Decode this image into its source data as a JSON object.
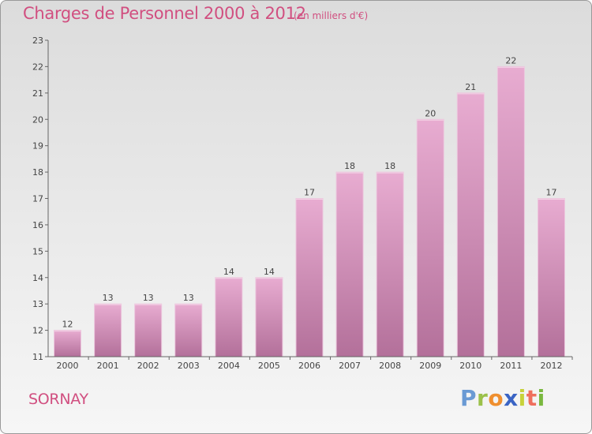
{
  "chart_data": {
    "type": "bar",
    "title": "Charges de Personnel 2000 à 2012",
    "subtitle": "(en milliers d'€)",
    "categories": [
      "2000",
      "2001",
      "2002",
      "2003",
      "2004",
      "2005",
      "2006",
      "2007",
      "2008",
      "2009",
      "2010",
      "2011",
      "2012"
    ],
    "values": [
      12,
      13,
      13,
      13,
      14,
      14,
      17,
      18,
      18,
      20,
      21,
      22,
      17
    ],
    "ylim": [
      11,
      23
    ],
    "yticks": [
      11,
      12,
      13,
      14,
      15,
      16,
      17,
      18,
      19,
      20,
      21,
      22,
      23
    ],
    "grid": false,
    "bar_color": "#d993bd",
    "data_labels": true
  },
  "footer": {
    "city": "SORNAY",
    "logo": {
      "p": "P",
      "r": "r",
      "o": "o",
      "x": "x",
      "i1": "i",
      "t": "t",
      "i2": "i"
    }
  },
  "colors": {
    "title": "#d14f80",
    "bar_top": "#e6a9cf",
    "bar_bottom": "#b5739a"
  }
}
